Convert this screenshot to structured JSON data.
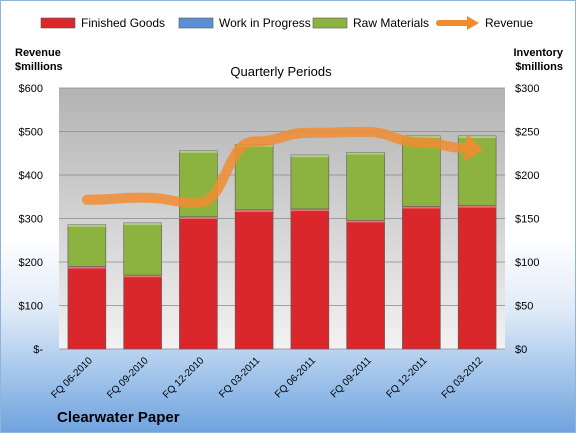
{
  "chart_data": {
    "type": "bar",
    "stacked": true,
    "title": "Quarterly Periods",
    "brand": "Clearwater Paper",
    "categories": [
      "FQ 06-2010",
      "FQ 09-2010",
      "FQ 12-2010",
      "FQ 03-2011",
      "FQ 06-2011",
      "FQ 09-2011",
      "FQ 12-2011",
      "FQ 03-2012"
    ],
    "series": [
      {
        "name": "Finished Goods",
        "axis": "right",
        "color": "#d9272b",
        "values": [
          95,
          85,
          152,
          160,
          161,
          148,
          164,
          165
        ]
      },
      {
        "name": "Work in Progress",
        "axis": "right",
        "color": "#5b8fd4",
        "values": [
          0,
          0,
          0,
          0,
          0,
          0,
          0,
          0
        ]
      },
      {
        "name": "Raw Materials",
        "axis": "right",
        "color": "#8cb33f",
        "values": [
          48,
          60,
          76,
          75,
          62,
          78,
          81,
          80
        ]
      },
      {
        "name": "Revenue",
        "axis": "left",
        "type": "line",
        "color": "#f08c30",
        "values": [
          343,
          348,
          336,
          477,
          497,
          499,
          475,
          459
        ]
      }
    ],
    "left_axis": {
      "label_line1": "Revenue",
      "label_line2": "$millions",
      "ylim": [
        0,
        600
      ],
      "ticks": [
        "$-",
        "$100",
        "$200",
        "$300",
        "$400",
        "$500",
        "$600"
      ]
    },
    "right_axis": {
      "label_line1": "Inventory",
      "label_line2": "$millions",
      "ylim": [
        0,
        300
      ],
      "ticks": [
        "$0",
        "$50",
        "$100",
        "$150",
        "$200",
        "$250",
        "$300"
      ]
    },
    "grid": true,
    "legend": "top"
  }
}
